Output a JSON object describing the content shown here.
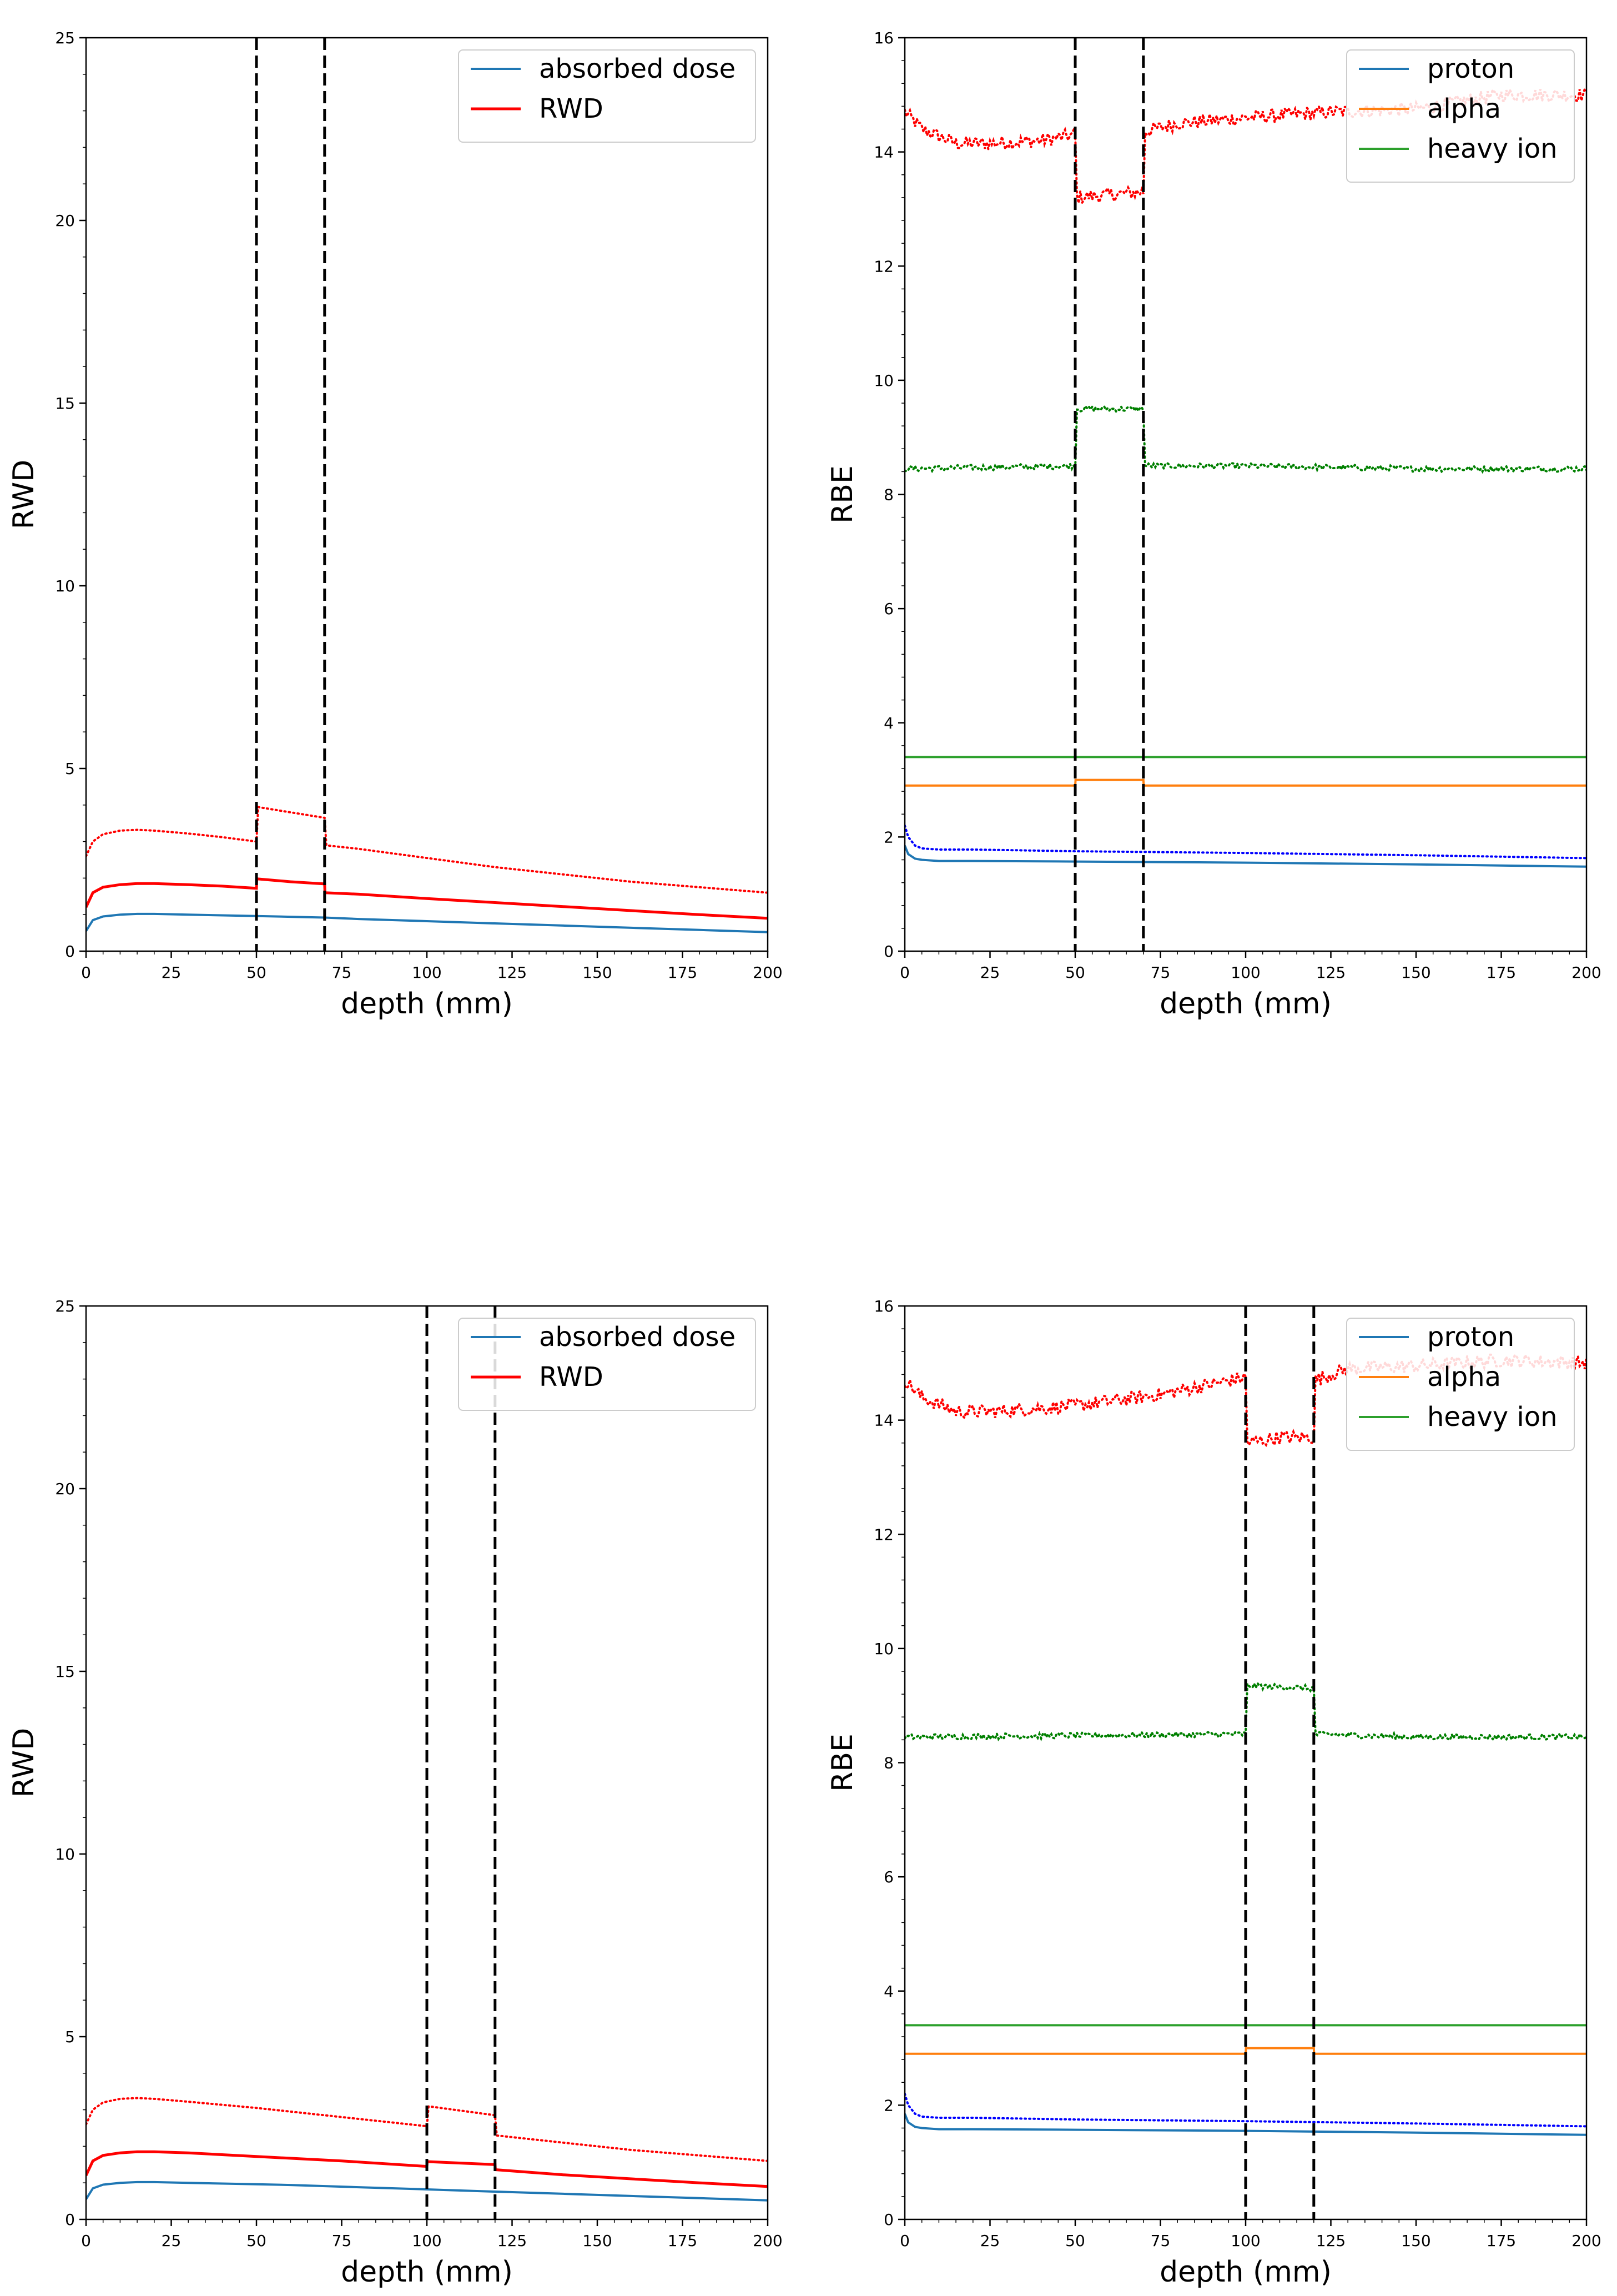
{
  "figure": {
    "layout": "2x2 grid of line plots",
    "colors": {
      "absorbed_dose": "#1f77b4",
      "rwd": "#ff0000",
      "proton": "#1f77b4",
      "alpha": "#ff7f0e",
      "heavy_ion": "#2ca02c",
      "dotted_proton": "#0000ff",
      "dotted_alpha": "#ff0000",
      "dotted_heavy_ion": "#008000",
      "vline": "#000000"
    }
  },
  "chart_data": [
    {
      "id": "rwd_top",
      "type": "line",
      "title": "",
      "xlabel": "depth (mm)",
      "ylabel": "RWD",
      "xlim": [
        0,
        200
      ],
      "ylim": [
        0,
        25
      ],
      "xticks": [
        0,
        25,
        50,
        75,
        100,
        125,
        150,
        175,
        200
      ],
      "yticks": [
        0,
        5,
        10,
        15,
        20,
        25
      ],
      "legend": {
        "location": "upper-right",
        "entries": [
          "absorbed dose",
          "RWD"
        ]
      },
      "vlines": [
        50,
        70
      ],
      "series": [
        {
          "name": "absorbed dose",
          "key": "absorbed_dose",
          "style": "solid",
          "x": [
            0,
            2,
            5,
            10,
            15,
            20,
            30,
            40,
            50,
            60,
            70,
            80,
            100,
            120,
            140,
            160,
            180,
            200
          ],
          "y": [
            0.55,
            0.85,
            0.95,
            1.0,
            1.02,
            1.02,
            1.0,
            0.98,
            0.96,
            0.94,
            0.92,
            0.88,
            0.82,
            0.76,
            0.7,
            0.64,
            0.58,
            0.52
          ]
        },
        {
          "name": "RWD",
          "key": "rwd",
          "style": "solid",
          "x": [
            0,
            2,
            5,
            10,
            15,
            20,
            30,
            40,
            50,
            50.1,
            60,
            70,
            70.1,
            80,
            100,
            120,
            140,
            160,
            180,
            200
          ],
          "y": [
            1.2,
            1.6,
            1.75,
            1.82,
            1.85,
            1.85,
            1.82,
            1.78,
            1.72,
            1.98,
            1.9,
            1.84,
            1.6,
            1.56,
            1.44,
            1.33,
            1.22,
            1.11,
            1.0,
            0.9
          ]
        },
        {
          "name": "RWD (dotted)",
          "key": "rwd",
          "style": "dotted",
          "x": [
            0,
            2,
            5,
            10,
            15,
            20,
            30,
            40,
            50,
            50.1,
            60,
            70,
            70.1,
            80,
            100,
            120,
            140,
            160,
            180,
            200
          ],
          "y": [
            2.6,
            3.0,
            3.2,
            3.3,
            3.32,
            3.3,
            3.22,
            3.12,
            3.0,
            3.95,
            3.8,
            3.65,
            2.9,
            2.8,
            2.55,
            2.3,
            2.1,
            1.9,
            1.75,
            1.6
          ]
        }
      ]
    },
    {
      "id": "rbe_top",
      "type": "line",
      "title": "",
      "xlabel": "depth (mm)",
      "ylabel": "RBE",
      "xlim": [
        0,
        200
      ],
      "ylim": [
        0,
        16
      ],
      "xticks": [
        0,
        25,
        50,
        75,
        100,
        125,
        150,
        175,
        200
      ],
      "yticks": [
        0,
        2,
        4,
        6,
        8,
        10,
        12,
        14,
        16
      ],
      "legend": {
        "location": "upper-right",
        "entries": [
          "proton",
          "alpha",
          "heavy ion"
        ]
      },
      "vlines": [
        50,
        70
      ],
      "series": [
        {
          "name": "proton",
          "key": "proton",
          "style": "solid",
          "x": [
            0,
            1,
            3,
            5,
            10,
            20,
            50,
            100,
            150,
            200
          ],
          "y": [
            1.85,
            1.7,
            1.62,
            1.6,
            1.58,
            1.58,
            1.57,
            1.55,
            1.52,
            1.48
          ]
        },
        {
          "name": "alpha",
          "key": "alpha",
          "style": "solid",
          "x": [
            0,
            50,
            50.1,
            70,
            70.1,
            200
          ],
          "y": [
            2.9,
            2.9,
            3.0,
            3.0,
            2.9,
            2.9
          ]
        },
        {
          "name": "heavy ion",
          "key": "heavy_ion",
          "style": "solid",
          "x": [
            0,
            200
          ],
          "y": [
            3.4,
            3.4
          ]
        },
        {
          "name": "proton (dotted)",
          "key": "dotted_proton",
          "style": "dotted",
          "x": [
            0,
            1,
            3,
            5,
            10,
            20,
            50,
            100,
            150,
            200
          ],
          "y": [
            2.2,
            2.0,
            1.85,
            1.8,
            1.78,
            1.78,
            1.75,
            1.72,
            1.68,
            1.63
          ]
        },
        {
          "name": "alpha (dotted)",
          "key": "dotted_alpha",
          "style": "dotted",
          "x": [
            0,
            5,
            15,
            25,
            40,
            50,
            50.1,
            60,
            70,
            70.1,
            80,
            100,
            125,
            150,
            175,
            200
          ],
          "y": [
            14.7,
            14.4,
            14.15,
            14.15,
            14.2,
            14.3,
            13.2,
            13.25,
            13.3,
            14.35,
            14.5,
            14.6,
            14.7,
            14.75,
            15.0,
            15.0
          ],
          "noise": 0.12
        },
        {
          "name": "heavy ion (dotted)",
          "key": "dotted_heavy_ion",
          "style": "dotted",
          "x": [
            0,
            50,
            50.1,
            70,
            70.1,
            100,
            150,
            200
          ],
          "y": [
            8.45,
            8.5,
            9.5,
            9.5,
            8.5,
            8.5,
            8.45,
            8.45
          ],
          "noise": 0.05
        }
      ]
    },
    {
      "id": "rwd_bottom",
      "type": "line",
      "title": "",
      "xlabel": "depth (mm)",
      "ylabel": "RWD",
      "xlim": [
        0,
        200
      ],
      "ylim": [
        0,
        25
      ],
      "xticks": [
        0,
        25,
        50,
        75,
        100,
        125,
        150,
        175,
        200
      ],
      "yticks": [
        0,
        5,
        10,
        15,
        20,
        25
      ],
      "legend": {
        "location": "upper-right",
        "entries": [
          "absorbed dose",
          "RWD"
        ]
      },
      "vlines": [
        100,
        120
      ],
      "series": [
        {
          "name": "absorbed dose",
          "key": "absorbed_dose",
          "style": "solid",
          "x": [
            0,
            2,
            5,
            10,
            15,
            20,
            30,
            40,
            50,
            60,
            80,
            100,
            120,
            140,
            160,
            180,
            200
          ],
          "y": [
            0.55,
            0.85,
            0.95,
            1.0,
            1.02,
            1.02,
            1.0,
            0.98,
            0.96,
            0.94,
            0.88,
            0.82,
            0.76,
            0.7,
            0.64,
            0.58,
            0.52
          ]
        },
        {
          "name": "RWD",
          "key": "rwd",
          "style": "solid",
          "x": [
            0,
            2,
            5,
            10,
            15,
            20,
            30,
            50,
            75,
            100,
            100.1,
            120,
            120.1,
            140,
            160,
            180,
            200
          ],
          "y": [
            1.2,
            1.6,
            1.75,
            1.82,
            1.85,
            1.85,
            1.82,
            1.72,
            1.6,
            1.45,
            1.58,
            1.5,
            1.36,
            1.22,
            1.11,
            1.0,
            0.9
          ]
        },
        {
          "name": "RWD (dotted)",
          "key": "rwd",
          "style": "dotted",
          "x": [
            0,
            2,
            5,
            10,
            15,
            20,
            30,
            50,
            75,
            100,
            100.1,
            120,
            120.1,
            140,
            160,
            180,
            200
          ],
          "y": [
            2.6,
            3.0,
            3.2,
            3.3,
            3.32,
            3.3,
            3.22,
            3.05,
            2.8,
            2.55,
            3.1,
            2.85,
            2.3,
            2.1,
            1.9,
            1.75,
            1.6
          ]
        }
      ]
    },
    {
      "id": "rbe_bottom",
      "type": "line",
      "title": "",
      "xlabel": "depth (mm)",
      "ylabel": "RBE",
      "xlim": [
        0,
        200
      ],
      "ylim": [
        0,
        16
      ],
      "xticks": [
        0,
        25,
        50,
        75,
        100,
        125,
        150,
        175,
        200
      ],
      "yticks": [
        0,
        2,
        4,
        6,
        8,
        10,
        12,
        14,
        16
      ],
      "legend": {
        "location": "upper-right",
        "entries": [
          "proton",
          "alpha",
          "heavy ion"
        ]
      },
      "vlines": [
        100,
        120
      ],
      "series": [
        {
          "name": "proton",
          "key": "proton",
          "style": "solid",
          "x": [
            0,
            1,
            3,
            5,
            10,
            20,
            50,
            100,
            150,
            200
          ],
          "y": [
            1.85,
            1.7,
            1.62,
            1.6,
            1.58,
            1.58,
            1.57,
            1.55,
            1.52,
            1.48
          ]
        },
        {
          "name": "alpha",
          "key": "alpha",
          "style": "solid",
          "x": [
            0,
            100,
            100.1,
            120,
            120.1,
            200
          ],
          "y": [
            2.9,
            2.9,
            3.0,
            3.0,
            2.9,
            2.9
          ]
        },
        {
          "name": "heavy ion",
          "key": "heavy_ion",
          "style": "solid",
          "x": [
            0,
            200
          ],
          "y": [
            3.4,
            3.4
          ]
        },
        {
          "name": "proton (dotted)",
          "key": "dotted_proton",
          "style": "dotted",
          "x": [
            0,
            1,
            3,
            5,
            10,
            20,
            50,
            100,
            150,
            200
          ],
          "y": [
            2.2,
            2.0,
            1.85,
            1.8,
            1.78,
            1.78,
            1.75,
            1.72,
            1.68,
            1.63
          ]
        },
        {
          "name": "alpha (dotted)",
          "key": "dotted_alpha",
          "style": "dotted",
          "x": [
            0,
            5,
            15,
            25,
            50,
            75,
            100,
            100.1,
            110,
            120,
            120.1,
            130,
            150,
            175,
            200
          ],
          "y": [
            14.7,
            14.4,
            14.15,
            14.15,
            14.25,
            14.45,
            14.75,
            13.6,
            13.7,
            13.7,
            14.7,
            14.9,
            14.95,
            15.05,
            15.0
          ],
          "noise": 0.12
        },
        {
          "name": "heavy ion (dotted)",
          "key": "dotted_heavy_ion",
          "style": "dotted",
          "x": [
            0,
            100,
            100.1,
            120,
            120.1,
            150,
            200
          ],
          "y": [
            8.45,
            8.5,
            9.35,
            9.3,
            8.5,
            8.45,
            8.45
          ],
          "noise": 0.05
        }
      ]
    }
  ]
}
